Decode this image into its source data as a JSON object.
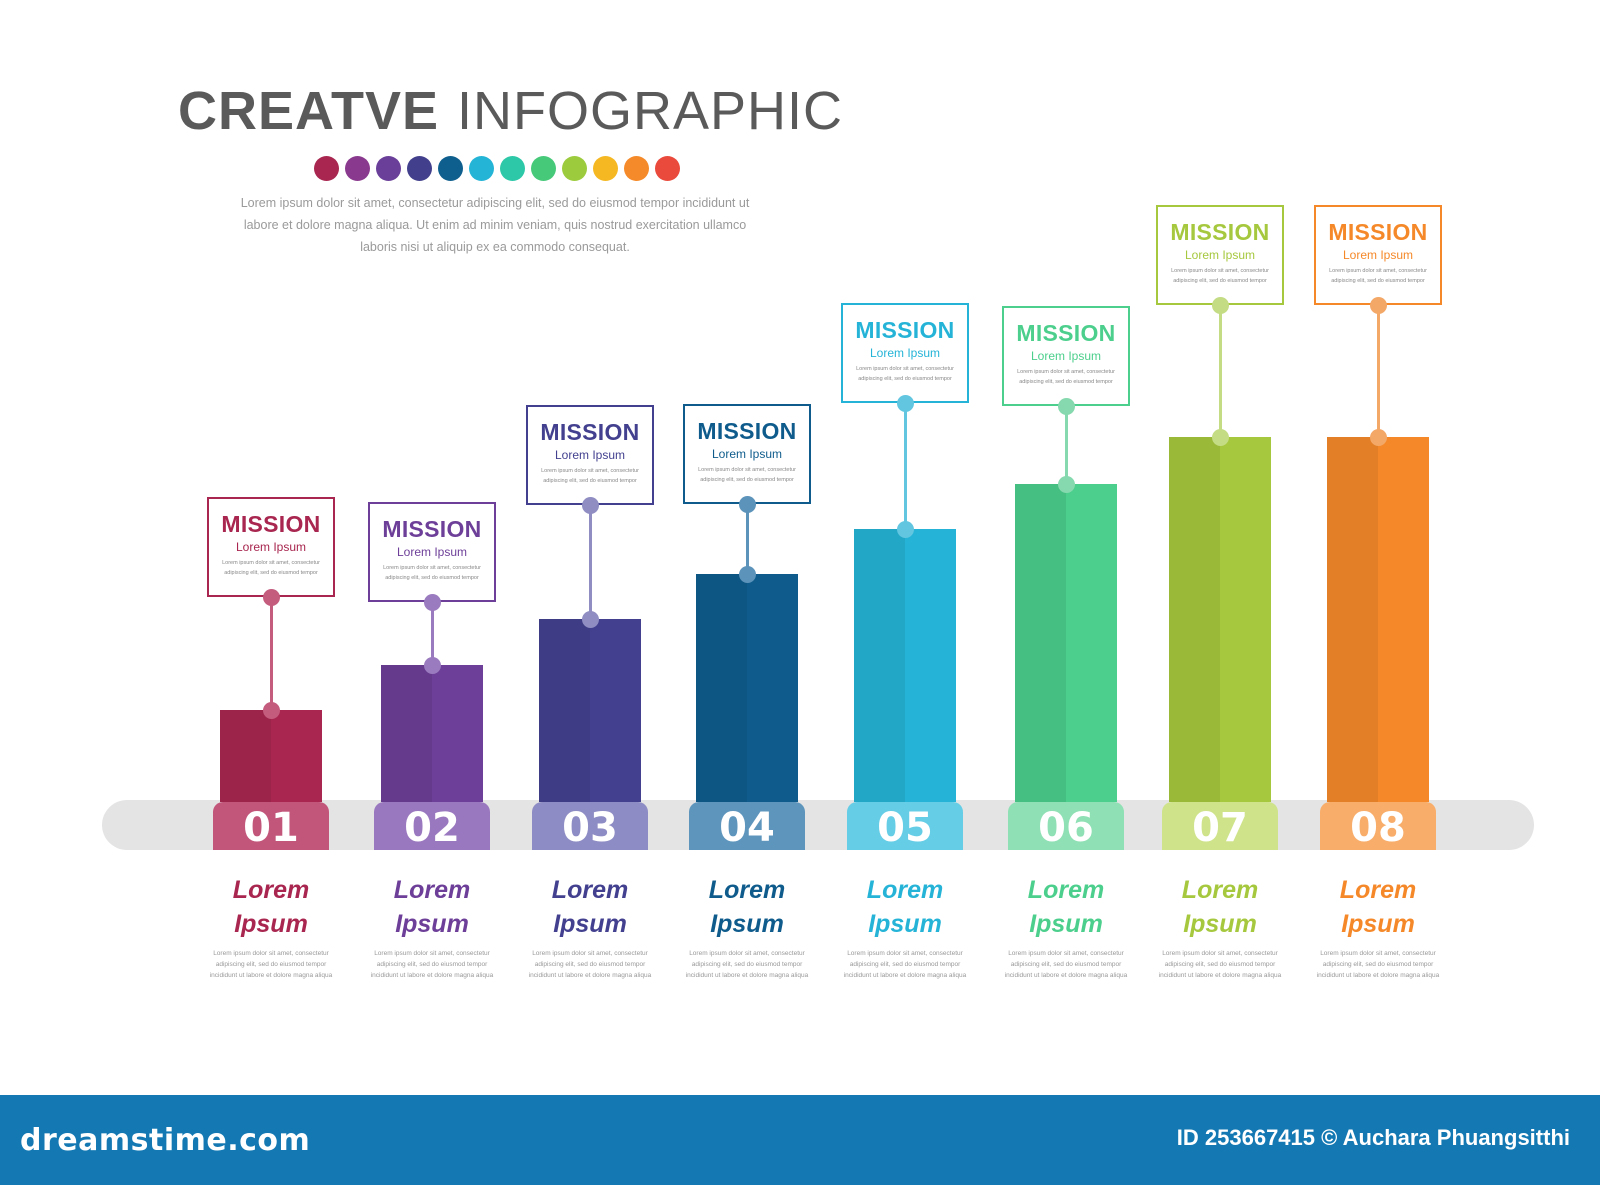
{
  "title": {
    "bold": "CREATVE",
    "light": "INFOGRAPHIC"
  },
  "palette": [
    "#a8264f",
    "#8a3a8e",
    "#6a3f9a",
    "#42408d",
    "#0f5f8e",
    "#24b4d6",
    "#2dc8a8",
    "#47c97a",
    "#9ccc3d",
    "#f5b822",
    "#f58a2a",
    "#ea4a3c"
  ],
  "intro_text": "Lorem ipsum dolor sit amet, consectetur adipiscing elit, sed do eiusmod tempor incididunt ut labore et dolore magna aliqua. Ut enim ad minim veniam, quis nostrud exercitation ullamco laboris nisi ut aliquip ex ea commodo consequat.",
  "steps": [
    {
      "number": "01",
      "card_title": "MISSION",
      "card_subtitle": "Lorem Ipsum",
      "card_text": "Lorem ipsum dolor sit amet, consectetur adipiscing elit, sed do eiusmod tempor",
      "label_line1": "Lorem",
      "label_line2": "Ipsum",
      "desc": "Lorem ipsum dolor sit amet, consectetur adipiscing elit, sed do eiusmod tempor incididunt ut labore et dolore magna aliqua",
      "color": "#a8264f",
      "tab_color": "#c2557a",
      "accent": "#c45c7e"
    },
    {
      "number": "02",
      "card_title": "MISSION",
      "card_subtitle": "Lorem Ipsum",
      "card_text": "Lorem ipsum dolor sit amet, consectetur adipiscing elit, sed do eiusmod tempor",
      "label_line1": "Lorem",
      "label_line2": "Ipsum",
      "desc": "Lorem ipsum dolor sit amet, consectetur adipiscing elit, sed do eiusmod tempor incididunt ut labore et dolore magna aliqua",
      "color": "#6d3f98",
      "tab_color": "#9a78bf",
      "accent": "#9b7bbf"
    },
    {
      "number": "03",
      "card_title": "MISSION",
      "card_subtitle": "Lorem Ipsum",
      "card_text": "Lorem ipsum dolor sit amet, consectetur adipiscing elit, sed do eiusmod tempor",
      "label_line1": "Lorem",
      "label_line2": "Ipsum",
      "desc": "Lorem ipsum dolor sit amet, consectetur adipiscing elit, sed do eiusmod tempor incididunt ut labore et dolore magna aliqua",
      "color": "#43418f",
      "tab_color": "#8e8cc4",
      "accent": "#8f8dc2"
    },
    {
      "number": "04",
      "card_title": "MISSION",
      "card_subtitle": "Lorem Ipsum",
      "card_text": "Lorem ipsum dolor sit amet, consectetur adipiscing elit, sed do eiusmod tempor",
      "label_line1": "Lorem",
      "label_line2": "Ipsum",
      "desc": "Lorem ipsum dolor sit amet, consectetur adipiscing elit, sed do eiusmod tempor incididunt ut labore et dolore magna aliqua",
      "color": "#0f5c8c",
      "tab_color": "#5d95bd",
      "accent": "#5c93ba"
    },
    {
      "number": "05",
      "card_title": "MISSION",
      "card_subtitle": "Lorem Ipsum",
      "card_text": "Lorem ipsum dolor sit amet, consectetur adipiscing elit, sed do eiusmod tempor",
      "label_line1": "Lorem",
      "label_line2": "Ipsum",
      "desc": "Lorem ipsum dolor sit amet, consectetur adipiscing elit, sed do eiusmod tempor incididunt ut labore et dolore magna aliqua",
      "color": "#25b4d7",
      "tab_color": "#66cde6",
      "accent": "#62c6e0"
    },
    {
      "number": "06",
      "card_title": "MISSION",
      "card_subtitle": "Lorem Ipsum",
      "card_text": "Lorem ipsum dolor sit amet, consectetur adipiscing elit, sed do eiusmod tempor",
      "label_line1": "Lorem",
      "label_line2": "Ipsum",
      "desc": "Lorem ipsum dolor sit amet, consectetur adipiscing elit, sed do eiusmod tempor incididunt ut labore et dolore magna aliqua",
      "color": "#4ccf8c",
      "tab_color": "#8fe0b4",
      "accent": "#86d9ae"
    },
    {
      "number": "07",
      "card_title": "MISSION",
      "card_subtitle": "Lorem Ipsum",
      "card_text": "Lorem ipsum dolor sit amet, consectetur adipiscing elit, sed do eiusmod tempor",
      "label_line1": "Lorem",
      "label_line2": "Ipsum",
      "desc": "Lorem ipsum dolor sit amet, consectetur adipiscing elit, sed do eiusmod tempor incididunt ut labore et dolore magna aliqua",
      "color": "#a6c83e",
      "tab_color": "#cfe38a",
      "accent": "#c4dc84"
    },
    {
      "number": "08",
      "card_title": "MISSION",
      "card_subtitle": "Lorem Ipsum",
      "card_text": "Lorem ipsum dolor sit amet, consectetur adipiscing elit, sed do eiusmod tempor",
      "label_line1": "Lorem",
      "label_line2": "Ipsum",
      "desc": "Lorem ipsum dolor sit amet, consectetur adipiscing elit, sed do eiusmod tempor incididunt ut labore et dolore magna aliqua",
      "color": "#f5892a",
      "tab_color": "#f8ad6a",
      "accent": "#f3a868"
    }
  ],
  "footer": {
    "brand": "dreamstime.com",
    "credit": "ID 253667415 © Auchara Phuangsitthi"
  },
  "colors": {
    "footer_bg": "#1479b3",
    "band": "#e4e4e4",
    "title": "#5a5a5a"
  }
}
